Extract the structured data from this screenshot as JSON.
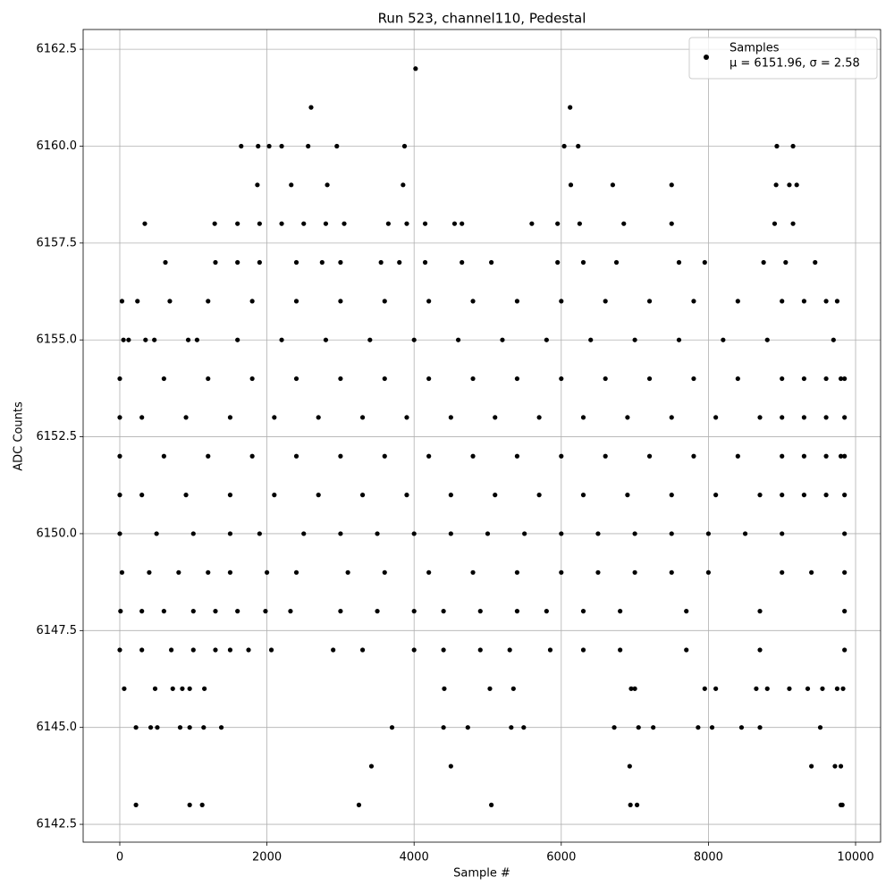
{
  "chart_data": {
    "type": "scatter",
    "title": "Run 523, channel110, Pedestal",
    "xlabel": "Sample #",
    "ylabel": "ADC Counts",
    "xlim": [
      -498,
      10340
    ],
    "ylim": [
      6142.04,
      6163.01
    ],
    "xticks": [
      0,
      2000,
      4000,
      6000,
      8000,
      10000
    ],
    "yticks": [
      6142.5,
      {
        "value": 6145,
        "label": "6145.0"
      },
      6147.5,
      {
        "value": 6150,
        "label": "6150.0"
      },
      6152.5,
      {
        "value": 6155,
        "label": "6155.0"
      },
      6157.5,
      {
        "value": 6160,
        "label": "6160.0"
      },
      6162.5
    ],
    "grid": true,
    "legend_position": "upper right",
    "legend_note": "μ = 6151.96, σ = 2.58",
    "series": [
      {
        "name": "Samples",
        "color": "#000000",
        "x": [
          4020,
          2600,
          6120,
          1650,
          1880,
          2030,
          2200,
          2560,
          2950,
          3870,
          6040,
          6230,
          8930,
          9150,
          1870,
          2330,
          2820,
          3850,
          6130,
          6700,
          7500,
          8920,
          9100,
          9200,
          340,
          1290,
          1600,
          1900,
          2200,
          2500,
          2800,
          3050,
          3650,
          3900,
          4150,
          4550,
          4650,
          5600,
          5950,
          6250,
          6850,
          7500,
          8900,
          9150,
          620,
          1300,
          1600,
          1900,
          2400,
          2750,
          3000,
          3550,
          3800,
          4150,
          4650,
          5050,
          5950,
          6300,
          6750,
          7600,
          7950,
          8750,
          9050,
          9450,
          30,
          240,
          680,
          1200,
          1800,
          2400,
          3000,
          3600,
          4200,
          4800,
          5400,
          6000,
          6600,
          7200,
          7800,
          8400,
          9000,
          9300,
          9600,
          9750,
          50,
          120,
          350,
          470,
          930,
          1050,
          1600,
          2200,
          2800,
          3400,
          4000,
          4600,
          5200,
          5800,
          6400,
          7000,
          7600,
          8200,
          8800,
          9700,
          0,
          600,
          1200,
          1800,
          2400,
          3000,
          3600,
          4200,
          4800,
          5400,
          6000,
          6600,
          7200,
          7800,
          8400,
          9000,
          9300,
          9600,
          9800,
          9850,
          0,
          300,
          900,
          1500,
          2100,
          2700,
          3300,
          3900,
          4500,
          5100,
          5700,
          6300,
          6900,
          7500,
          8100,
          8700,
          9000,
          9300,
          9600,
          9850,
          0,
          600,
          1200,
          1800,
          2400,
          3000,
          3600,
          4200,
          4800,
          5400,
          6000,
          6600,
          7200,
          7800,
          8400,
          9000,
          9300,
          9600,
          9800,
          9850,
          0,
          300,
          900,
          1500,
          2100,
          2700,
          3300,
          3900,
          4500,
          5100,
          5700,
          6300,
          6900,
          7500,
          8100,
          8700,
          9000,
          9300,
          9600,
          9850,
          0,
          500,
          1000,
          1500,
          1900,
          2500,
          3000,
          3500,
          4000,
          4500,
          5000,
          5500,
          6000,
          6500,
          7000,
          7500,
          8000,
          8500,
          9000,
          9850,
          30,
          400,
          800,
          1200,
          1500,
          2000,
          2400,
          3100,
          3600,
          4200,
          4800,
          5400,
          6000,
          6500,
          7000,
          7500,
          8000,
          9000,
          9400,
          9850,
          10,
          300,
          600,
          1000,
          1300,
          1600,
          1980,
          2320,
          3000,
          3500,
          4000,
          4400,
          4900,
          5400,
          5800,
          6300,
          6800,
          7700,
          8700,
          9850,
          0,
          300,
          700,
          1000,
          1300,
          1500,
          1750,
          2060,
          2900,
          3300,
          4000,
          4400,
          4900,
          5300,
          5850,
          6300,
          6800,
          7700,
          8700,
          9850,
          60,
          480,
          720,
          850,
          950,
          1150,
          4410,
          5030,
          5350,
          6950,
          7000,
          7950,
          8100,
          8650,
          8800,
          9100,
          9350,
          9550,
          9750,
          9830,
          220,
          420,
          510,
          820,
          950,
          1140,
          1380,
          3700,
          4400,
          4730,
          5320,
          5490,
          6720,
          7050,
          7250,
          7860,
          8050,
          8450,
          8700,
          9520,
          3420,
          4500,
          6930,
          9400,
          9720,
          9800,
          220,
          950,
          1120,
          3250,
          5050,
          6940,
          7030,
          9800,
          9820
        ],
        "values": [
          6162,
          6161,
          6161,
          6160,
          6160,
          6160,
          6160,
          6160,
          6160,
          6160,
          6160,
          6160,
          6160,
          6160,
          6159,
          6159,
          6159,
          6159,
          6159,
          6159,
          6159,
          6159,
          6159,
          6159,
          6158,
          6158,
          6158,
          6158,
          6158,
          6158,
          6158,
          6158,
          6158,
          6158,
          6158,
          6158,
          6158,
          6158,
          6158,
          6158,
          6158,
          6158,
          6158,
          6158,
          6157,
          6157,
          6157,
          6157,
          6157,
          6157,
          6157,
          6157,
          6157,
          6157,
          6157,
          6157,
          6157,
          6157,
          6157,
          6157,
          6157,
          6157,
          6157,
          6157,
          6156,
          6156,
          6156,
          6156,
          6156,
          6156,
          6156,
          6156,
          6156,
          6156,
          6156,
          6156,
          6156,
          6156,
          6156,
          6156,
          6156,
          6156,
          6156,
          6156,
          6155,
          6155,
          6155,
          6155,
          6155,
          6155,
          6155,
          6155,
          6155,
          6155,
          6155,
          6155,
          6155,
          6155,
          6155,
          6155,
          6155,
          6155,
          6155,
          6155,
          6154,
          6154,
          6154,
          6154,
          6154,
          6154,
          6154,
          6154,
          6154,
          6154,
          6154,
          6154,
          6154,
          6154,
          6154,
          6154,
          6154,
          6154,
          6154,
          6154,
          6153,
          6153,
          6153,
          6153,
          6153,
          6153,
          6153,
          6153,
          6153,
          6153,
          6153,
          6153,
          6153,
          6153,
          6153,
          6153,
          6153,
          6153,
          6153,
          6153,
          6152,
          6152,
          6152,
          6152,
          6152,
          6152,
          6152,
          6152,
          6152,
          6152,
          6152,
          6152,
          6152,
          6152,
          6152,
          6152,
          6152,
          6152,
          6152,
          6152,
          6151,
          6151,
          6151,
          6151,
          6151,
          6151,
          6151,
          6151,
          6151,
          6151,
          6151,
          6151,
          6151,
          6151,
          6151,
          6151,
          6151,
          6151,
          6151,
          6151,
          6150,
          6150,
          6150,
          6150,
          6150,
          6150,
          6150,
          6150,
          6150,
          6150,
          6150,
          6150,
          6150,
          6150,
          6150,
          6150,
          6150,
          6150,
          6150,
          6150,
          6149,
          6149,
          6149,
          6149,
          6149,
          6149,
          6149,
          6149,
          6149,
          6149,
          6149,
          6149,
          6149,
          6149,
          6149,
          6149,
          6149,
          6149,
          6149,
          6149,
          6148,
          6148,
          6148,
          6148,
          6148,
          6148,
          6148,
          6148,
          6148,
          6148,
          6148,
          6148,
          6148,
          6148,
          6148,
          6148,
          6148,
          6148,
          6148,
          6148,
          6147,
          6147,
          6147,
          6147,
          6147,
          6147,
          6147,
          6147,
          6147,
          6147,
          6147,
          6147,
          6147,
          6147,
          6147,
          6147,
          6147,
          6147,
          6147,
          6147,
          6146,
          6146,
          6146,
          6146,
          6146,
          6146,
          6146,
          6146,
          6146,
          6146,
          6146,
          6146,
          6146,
          6146,
          6146,
          6146,
          6146,
          6146,
          6146,
          6146,
          6145,
          6145,
          6145,
          6145,
          6145,
          6145,
          6145,
          6145,
          6145,
          6145,
          6145,
          6145,
          6145,
          6145,
          6145,
          6145,
          6145,
          6145,
          6145,
          6145,
          6144,
          6144,
          6144,
          6144,
          6144,
          6144,
          6143,
          6143,
          6143,
          6143,
          6143,
          6143,
          6143,
          6143,
          6143
        ]
      }
    ]
  }
}
